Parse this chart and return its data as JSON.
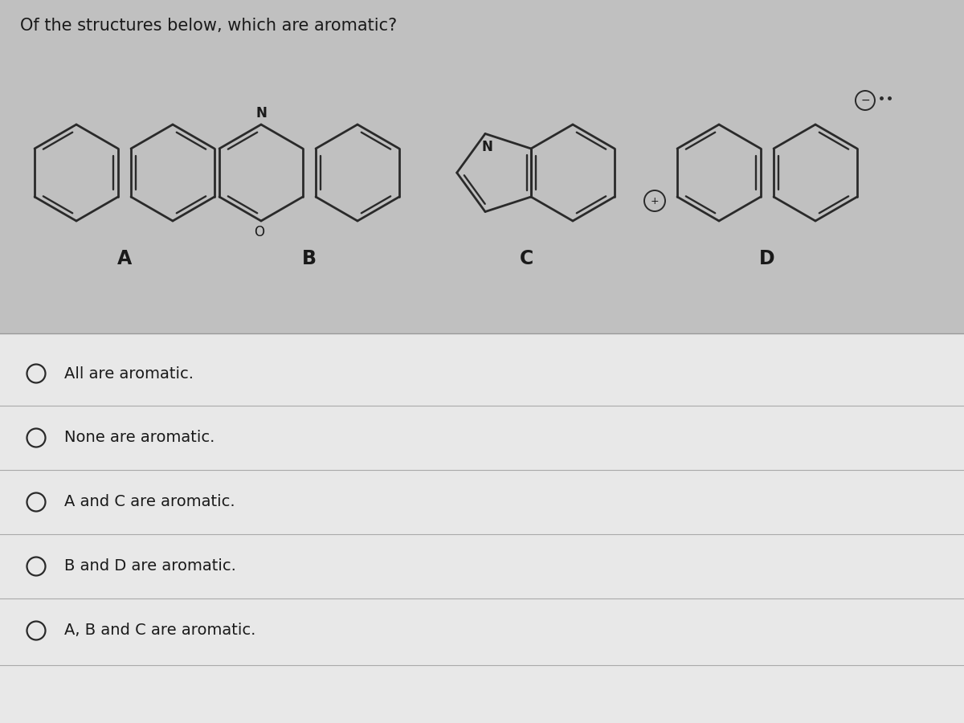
{
  "title": "Of the structures below, which are aromatic?",
  "title_fontsize": 15,
  "background_color": "#c8c8c8",
  "options": [
    "All are aromatic.",
    "None are aromatic.",
    "A and C are aromatic.",
    "B and D are aromatic.",
    "A, B and C are aromatic."
  ],
  "labels": [
    "A",
    "B",
    "C",
    "D"
  ],
  "line_color": "#2a2a2a",
  "text_color": "#1a1a1a",
  "option_fontsize": 14,
  "label_fontsize": 17
}
